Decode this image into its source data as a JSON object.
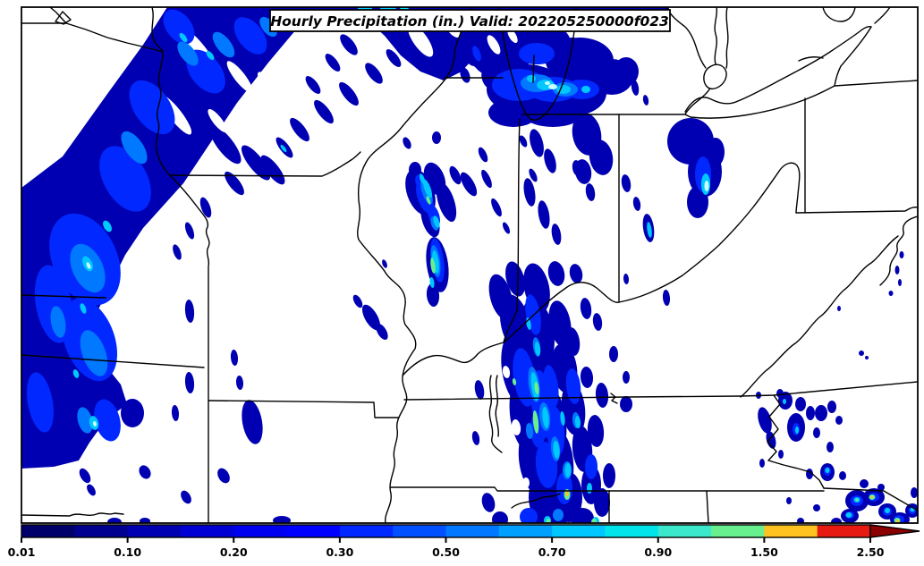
{
  "figure": {
    "title": "Hourly Precipitation (in.) Valid: 202205250000f023",
    "variable": "Hourly Precipitation",
    "units": "in.",
    "valid_label": "Valid: 202205250000f023"
  },
  "colorbar": {
    "tick_labels": [
      "0.01",
      "0.10",
      "0.20",
      "0.30",
      "0.50",
      "0.70",
      "0.90",
      "1.50",
      "2.50"
    ],
    "levels": [
      0.01,
      0.05,
      0.1,
      0.15,
      0.2,
      0.25,
      0.3,
      0.4,
      0.5,
      0.6,
      0.7,
      0.8,
      0.9,
      1.0,
      1.5,
      2.0,
      2.5
    ],
    "segment_colors": [
      "#00006a",
      "#000090",
      "#0000b2",
      "#0000d4",
      "#0000f0",
      "#0000ff",
      "#0028ff",
      "#0050ff",
      "#0078ff",
      "#00a0ff",
      "#00c8ff",
      "#00e4ea",
      "#3ce8cc",
      "#68ef8e",
      "#ffc321",
      "#e71a12"
    ],
    "overflow_arrow_color": "#8b0000",
    "outline_color": "#000000"
  },
  "map_palette": {
    "border_color": "#000000",
    "background_color": "#ffffff",
    "core_highlight": "#c8ffff"
  },
  "chart_data": {
    "type": "heatmap",
    "title": "Hourly Precipitation (in.) Valid: 202205250000f023",
    "legend_position": "bottom",
    "colorbar_tick_labels": [
      "0.01",
      "0.10",
      "0.20",
      "0.30",
      "0.50",
      "0.70",
      "0.90",
      "1.50",
      "2.50"
    ],
    "colorbar_levels_in": [
      0.01,
      0.05,
      0.1,
      0.15,
      0.2,
      0.25,
      0.3,
      0.4,
      0.5,
      0.6,
      0.7,
      0.8,
      0.9,
      1.0,
      1.5,
      2.0,
      2.5
    ],
    "colorbar_colors": [
      "#00006a",
      "#000090",
      "#0000b2",
      "#0000d4",
      "#0000f0",
      "#0000ff",
      "#0028ff",
      "#0050ff",
      "#0078ff",
      "#00a0ff",
      "#00c8ff",
      "#00e4ea",
      "#3ce8cc",
      "#68ef8e",
      "#ffc321",
      "#e71a12"
    ]
  }
}
